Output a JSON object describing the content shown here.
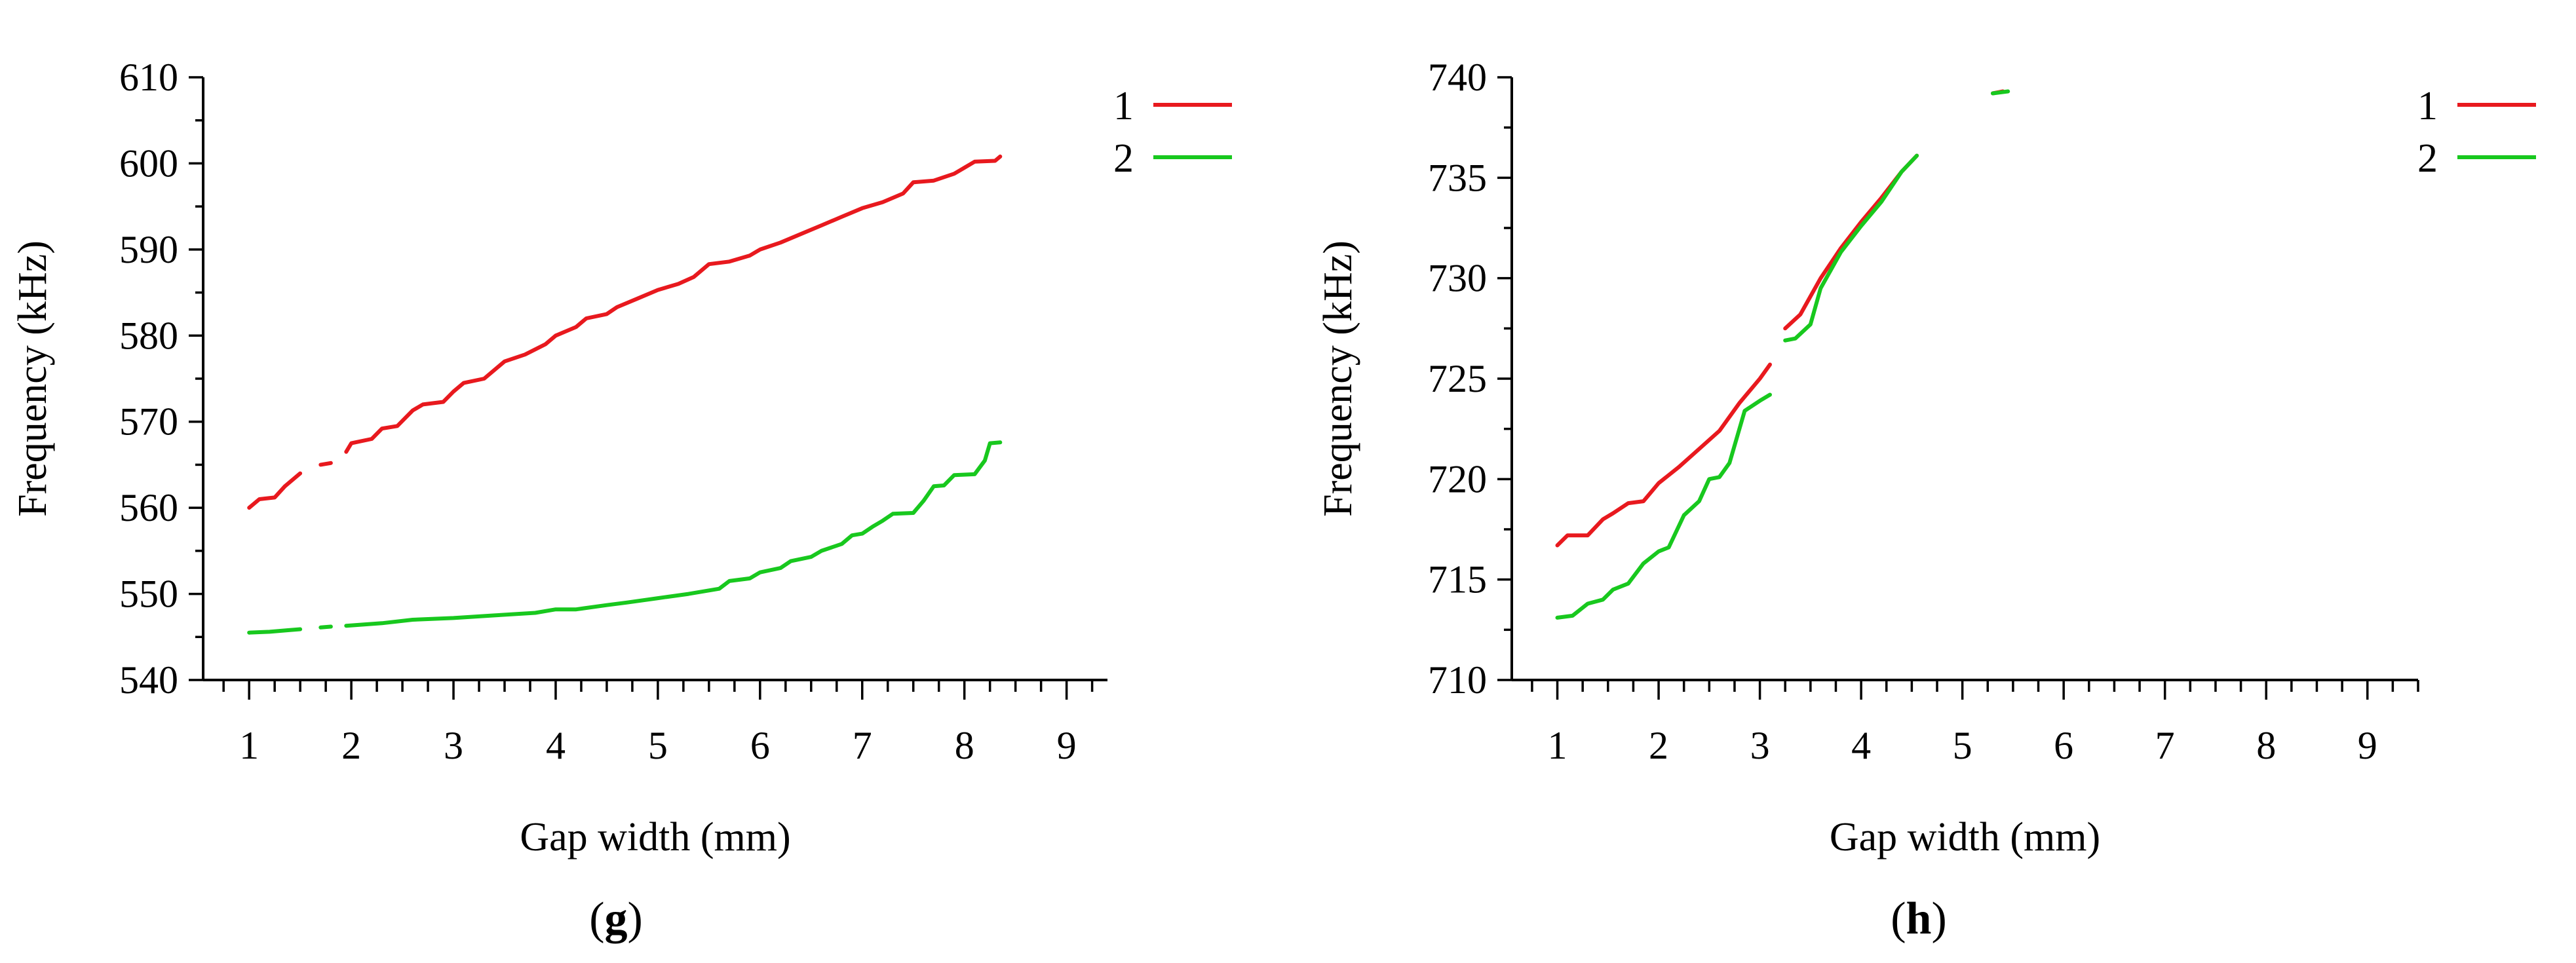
{
  "colors": {
    "series1": "#e8191e",
    "series2": "#18c81e"
  },
  "chart_data": [
    {
      "type": "line",
      "panel_label": "g",
      "xlabel": "Gap width (mm)",
      "ylabel": "Frequency (kHz)",
      "xlim": [
        0.55,
        9.4
      ],
      "ylim": [
        540,
        610
      ],
      "xticks": [
        1,
        2,
        3,
        4,
        5,
        6,
        7,
        8,
        9
      ],
      "yticks": [
        540,
        550,
        560,
        570,
        580,
        590,
        600,
        610
      ],
      "legend_position": "top-right",
      "series": [
        {
          "name": "1",
          "segments": [
            [
              [
                1.0,
                560.0
              ],
              [
                1.1,
                561.0
              ],
              [
                1.25,
                561.2
              ],
              [
                1.35,
                562.5
              ],
              [
                1.5,
                564.0
              ]
            ],
            [
              [
                1.7,
                565.0
              ],
              [
                1.8,
                565.2
              ]
            ],
            [
              [
                1.95,
                566.5
              ],
              [
                2.0,
                567.5
              ],
              [
                2.2,
                568.0
              ],
              [
                2.3,
                569.2
              ],
              [
                2.45,
                569.5
              ],
              [
                2.6,
                571.3
              ],
              [
                2.7,
                572.0
              ],
              [
                2.9,
                572.3
              ],
              [
                3.0,
                573.5
              ],
              [
                3.1,
                574.5
              ],
              [
                3.3,
                575.0
              ],
              [
                3.5,
                577.0
              ],
              [
                3.7,
                577.8
              ],
              [
                3.9,
                579.0
              ],
              [
                4.0,
                580.0
              ],
              [
                4.2,
                581.0
              ],
              [
                4.3,
                582.0
              ],
              [
                4.5,
                582.5
              ],
              [
                4.6,
                583.3
              ],
              [
                4.8,
                584.3
              ],
              [
                5.0,
                585.3
              ],
              [
                5.2,
                586.0
              ],
              [
                5.35,
                586.8
              ],
              [
                5.5,
                588.3
              ],
              [
                5.7,
                588.6
              ],
              [
                5.9,
                589.3
              ],
              [
                6.0,
                590.0
              ],
              [
                6.2,
                590.8
              ],
              [
                6.4,
                591.8
              ],
              [
                6.6,
                592.8
              ],
              [
                6.8,
                593.8
              ],
              [
                7.0,
                594.8
              ],
              [
                7.2,
                595.5
              ],
              [
                7.4,
                596.5
              ],
              [
                7.5,
                597.8
              ],
              [
                7.7,
                598.0
              ],
              [
                7.9,
                598.8
              ],
              [
                8.0,
                599.5
              ],
              [
                8.1,
                600.2
              ],
              [
                8.3,
                600.3
              ],
              [
                8.35,
                600.8
              ]
            ]
          ]
        },
        {
          "name": "2",
          "segments": [
            [
              [
                1.0,
                545.5
              ],
              [
                1.2,
                545.6
              ],
              [
                1.4,
                545.8
              ],
              [
                1.5,
                545.9
              ]
            ],
            [
              [
                1.7,
                546.1
              ],
              [
                1.8,
                546.2
              ]
            ],
            [
              [
                1.95,
                546.3
              ],
              [
                2.3,
                546.6
              ],
              [
                2.6,
                547.0
              ],
              [
                3.0,
                547.2
              ],
              [
                3.4,
                547.5
              ],
              [
                3.8,
                547.8
              ],
              [
                4.0,
                548.2
              ],
              [
                4.2,
                548.2
              ],
              [
                4.5,
                548.7
              ],
              [
                4.7,
                549.0
              ],
              [
                5.0,
                549.5
              ],
              [
                5.3,
                550.0
              ],
              [
                5.6,
                550.6
              ],
              [
                5.7,
                551.5
              ],
              [
                5.9,
                551.8
              ],
              [
                6.0,
                552.5
              ],
              [
                6.2,
                553.0
              ],
              [
                6.3,
                553.8
              ],
              [
                6.5,
                554.3
              ],
              [
                6.6,
                555.0
              ],
              [
                6.8,
                555.8
              ],
              [
                6.9,
                556.8
              ],
              [
                7.0,
                557.0
              ],
              [
                7.1,
                557.8
              ],
              [
                7.2,
                558.5
              ],
              [
                7.3,
                559.3
              ],
              [
                7.5,
                559.4
              ],
              [
                7.6,
                560.8
              ],
              [
                7.7,
                562.5
              ],
              [
                7.8,
                562.6
              ],
              [
                7.9,
                563.8
              ],
              [
                8.1,
                563.9
              ],
              [
                8.2,
                565.5
              ],
              [
                8.25,
                567.5
              ],
              [
                8.35,
                567.6
              ]
            ]
          ]
        }
      ]
    },
    {
      "type": "line",
      "panel_label": "h",
      "xlabel": "Gap width (mm)",
      "ylabel": "Frequency (kHz)",
      "xlim": [
        0.55,
        9.5
      ],
      "ylim": [
        710,
        740
      ],
      "xticks": [
        1,
        2,
        3,
        4,
        5,
        6,
        7,
        8,
        9
      ],
      "yticks": [
        710,
        715,
        720,
        725,
        730,
        735,
        740
      ],
      "legend_position": "top-right",
      "series": [
        {
          "name": "1",
          "segments": [
            [
              [
                1.0,
                716.7
              ],
              [
                1.1,
                717.2
              ],
              [
                1.3,
                717.2
              ],
              [
                1.45,
                718.0
              ],
              [
                1.55,
                718.3
              ],
              [
                1.7,
                718.8
              ],
              [
                1.85,
                718.9
              ],
              [
                2.0,
                719.8
              ],
              [
                2.2,
                720.6
              ],
              [
                2.4,
                721.5
              ],
              [
                2.6,
                722.4
              ],
              [
                2.8,
                723.8
              ],
              [
                3.0,
                725.0
              ],
              [
                3.1,
                725.7
              ]
            ],
            [
              [
                3.25,
                727.5
              ],
              [
                3.4,
                728.2
              ],
              [
                3.6,
                730.0
              ],
              [
                3.8,
                731.5
              ],
              [
                4.0,
                732.8
              ],
              [
                4.2,
                734.0
              ],
              [
                4.4,
                735.3
              ],
              [
                4.55,
                736.1
              ]
            ],
            [
              [
                5.3,
                739.2
              ],
              [
                5.4,
                739.3
              ]
            ]
          ]
        },
        {
          "name": "2",
          "segments": [
            [
              [
                1.0,
                713.1
              ],
              [
                1.15,
                713.2
              ],
              [
                1.3,
                713.8
              ],
              [
                1.45,
                714.0
              ],
              [
                1.55,
                714.5
              ],
              [
                1.7,
                714.8
              ],
              [
                1.85,
                715.8
              ],
              [
                2.0,
                716.4
              ],
              [
                2.1,
                716.6
              ],
              [
                2.25,
                718.2
              ],
              [
                2.4,
                718.9
              ],
              [
                2.5,
                720.0
              ],
              [
                2.6,
                720.1
              ],
              [
                2.7,
                720.8
              ],
              [
                2.85,
                723.4
              ],
              [
                3.0,
                723.9
              ],
              [
                3.1,
                724.2
              ]
            ],
            [
              [
                3.25,
                726.9
              ],
              [
                3.35,
                727.0
              ],
              [
                3.5,
                727.7
              ],
              [
                3.6,
                729.5
              ],
              [
                3.8,
                731.3
              ],
              [
                4.0,
                732.6
              ],
              [
                4.2,
                733.8
              ],
              [
                4.4,
                735.3
              ],
              [
                4.55,
                736.1
              ]
            ],
            [
              [
                5.3,
                739.2
              ],
              [
                5.45,
                739.3
              ]
            ]
          ]
        }
      ]
    }
  ]
}
